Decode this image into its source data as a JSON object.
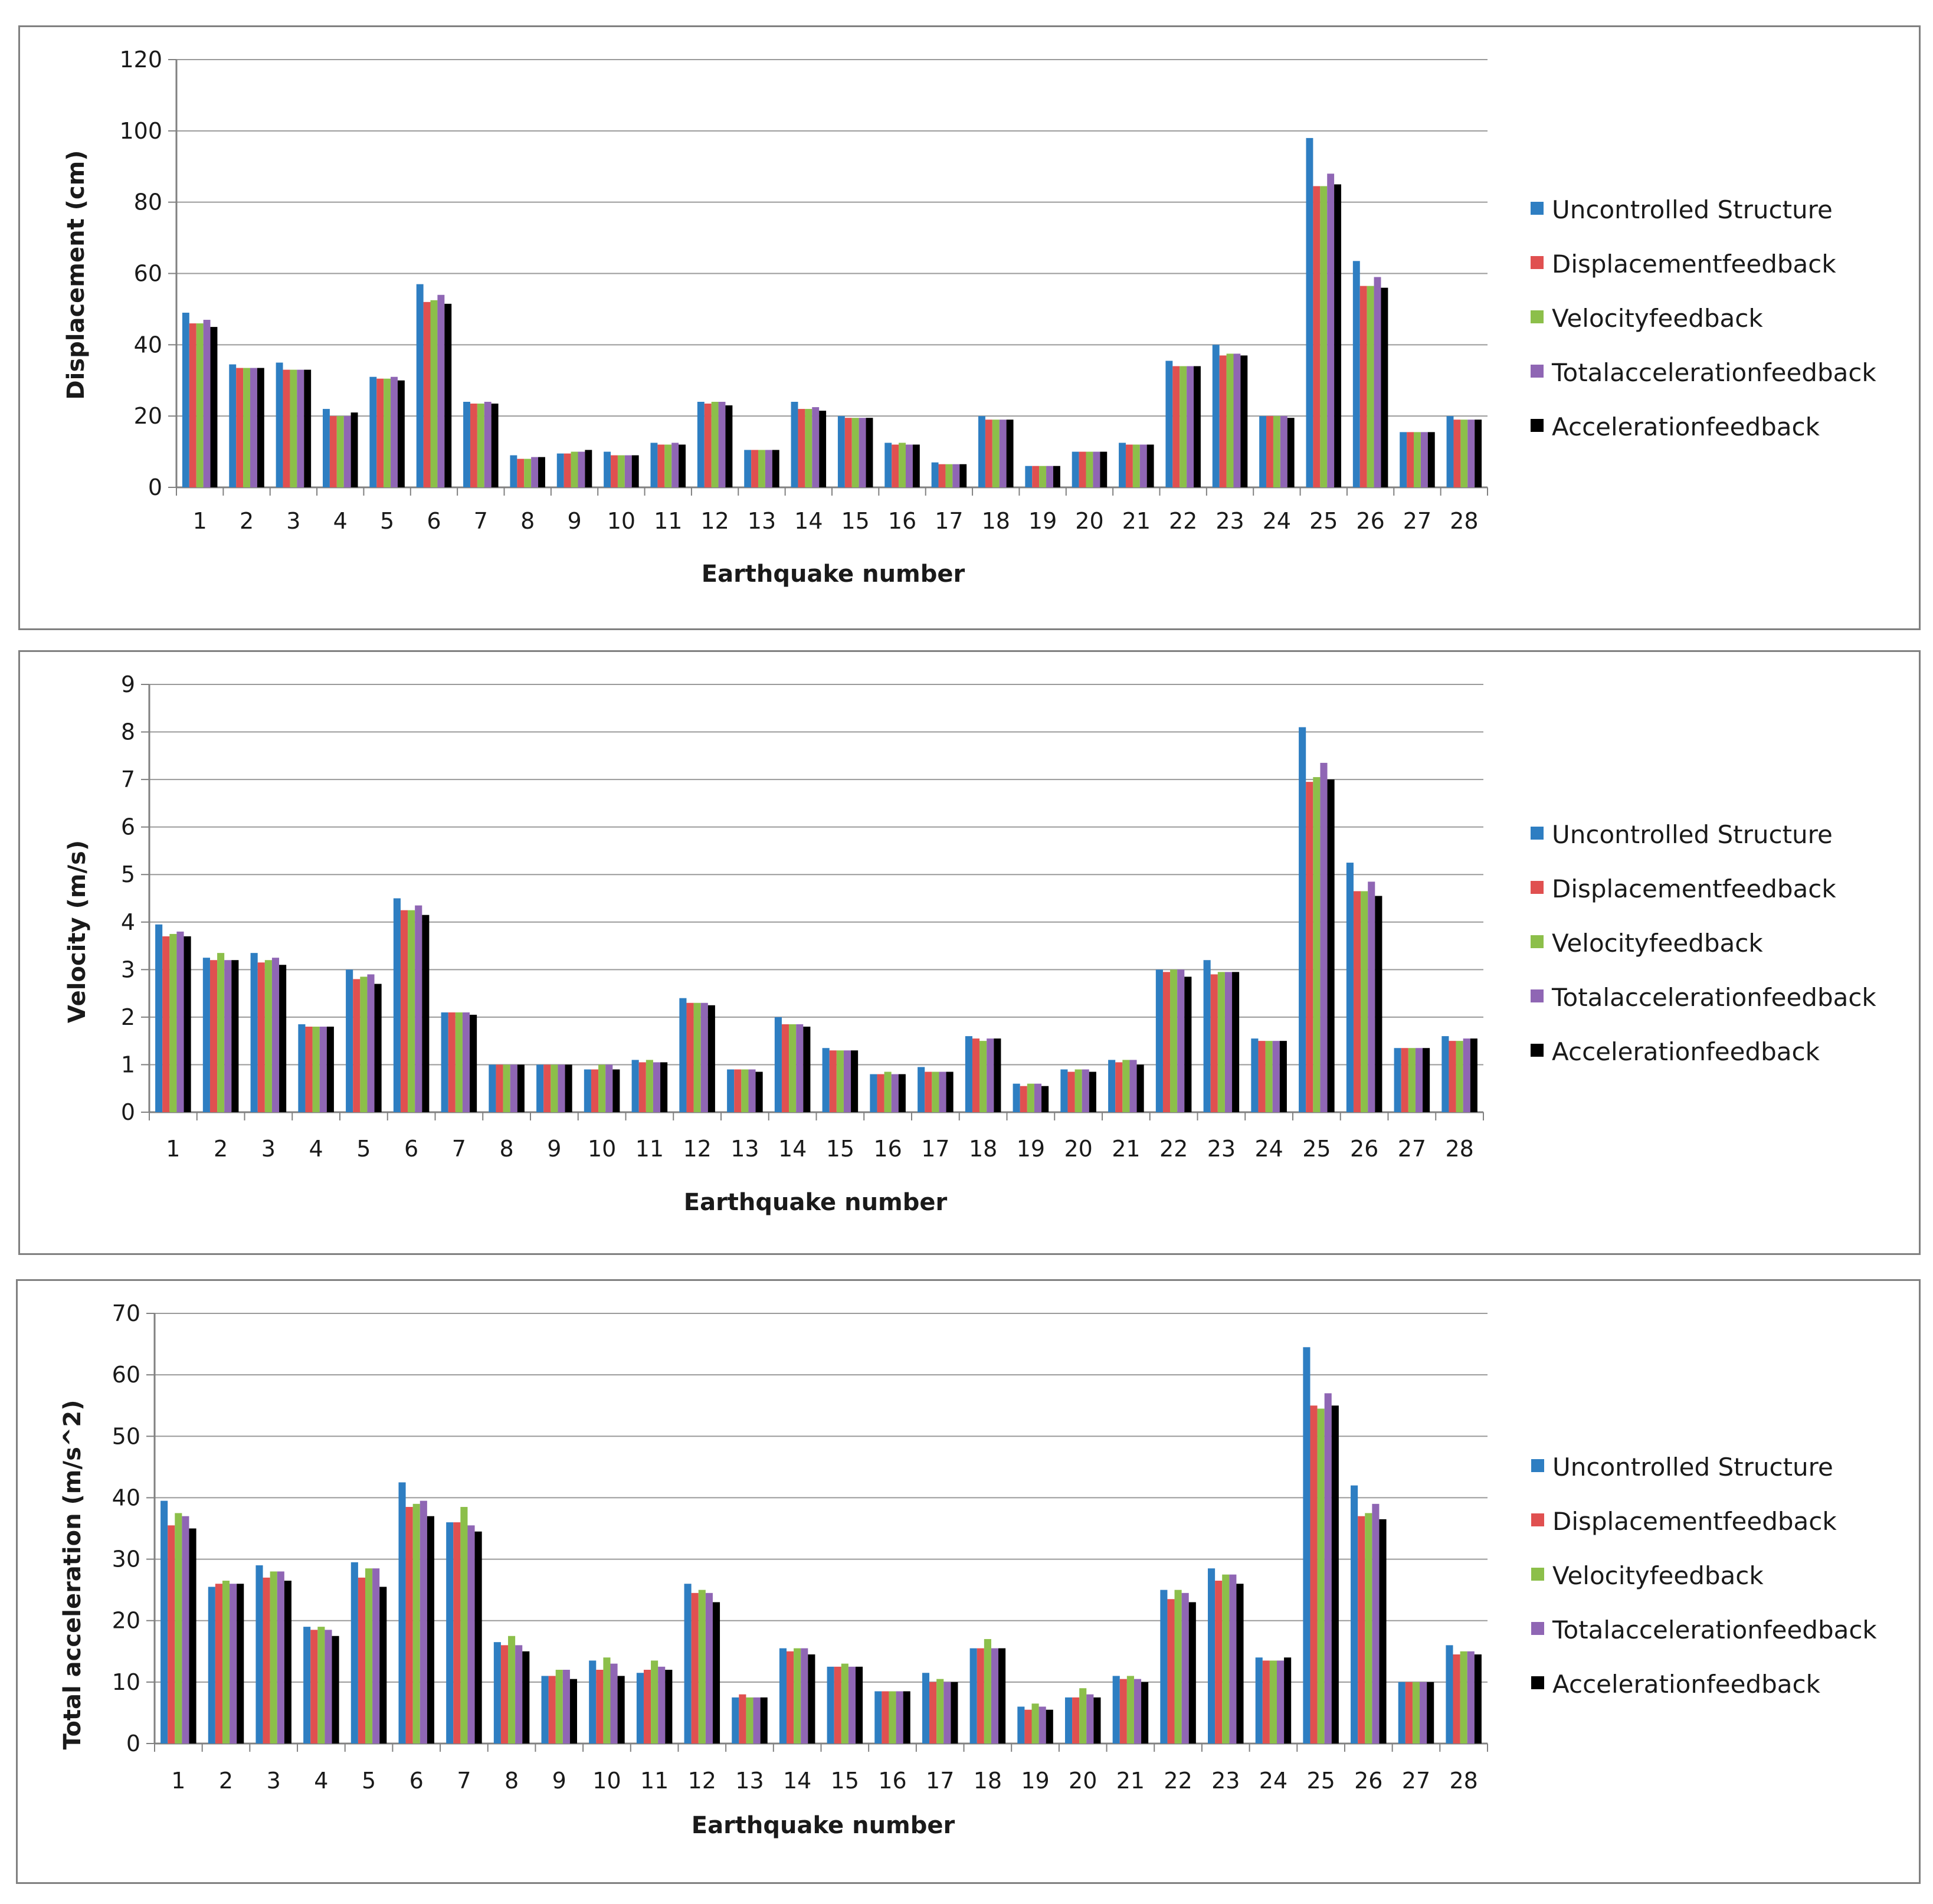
{
  "legend": [
    "Uncontrolled Structure",
    "Displacementfeedback",
    "Velocityfeedback",
    "Totalaccelerationfeedback",
    "Accelerationfeedback"
  ],
  "series_colors": [
    "#2e7ec2",
    "#e05050",
    "#8cbf4a",
    "#8f66b4",
    "#000000"
  ],
  "chart_data": [
    {
      "type": "bar",
      "title": "",
      "xlabel": "Earthquake number",
      "ylabel": "Displacement  (cm)",
      "ylim": [
        0,
        120
      ],
      "yticks": [
        0,
        20,
        40,
        60,
        80,
        100,
        120
      ],
      "categories": [
        "1",
        "2",
        "3",
        "4",
        "5",
        "6",
        "7",
        "8",
        "9",
        "10",
        "11",
        "12",
        "13",
        "14",
        "15",
        "16",
        "17",
        "18",
        "19",
        "20",
        "21",
        "22",
        "23",
        "24",
        "25",
        "26",
        "27",
        "28"
      ],
      "series": [
        {
          "name": "Uncontrolled Structure",
          "values": [
            49,
            34.5,
            35,
            22,
            31,
            57,
            24,
            9,
            9.5,
            10,
            12.5,
            24,
            10.5,
            24,
            20,
            12.5,
            7,
            20,
            6,
            10,
            12.5,
            35.5,
            40,
            20,
            98,
            63.5,
            15.5,
            20
          ]
        },
        {
          "name": "Displacementfeedback",
          "values": [
            46,
            33.5,
            33,
            20,
            30.5,
            52,
            23.5,
            8,
            9.5,
            9,
            12,
            23.5,
            10.5,
            22,
            19.5,
            12,
            6.5,
            19,
            6,
            10,
            12,
            34,
            37,
            20,
            84.5,
            56.5,
            15.5,
            19
          ]
        },
        {
          "name": "Velocityfeedback",
          "values": [
            46,
            33.5,
            33,
            20,
            30.5,
            52.5,
            23.5,
            8,
            10,
            9,
            12,
            24,
            10.5,
            22,
            19.5,
            12.5,
            6.5,
            19,
            6,
            10,
            12,
            34,
            37.5,
            20,
            84.5,
            56.5,
            15.5,
            19
          ]
        },
        {
          "name": "Totalaccelerationfeedback",
          "values": [
            47,
            33.5,
            33,
            20,
            31,
            54,
            24,
            8.5,
            10,
            9,
            12.5,
            24,
            10.5,
            22.5,
            19.5,
            12,
            6.5,
            19,
            6,
            10,
            12,
            34,
            37.5,
            20,
            88,
            59,
            15.5,
            19
          ]
        },
        {
          "name": "Accelerationfeedback",
          "values": [
            45,
            33.5,
            33,
            21,
            30,
            51.5,
            23.5,
            8.5,
            10.5,
            9,
            12,
            23,
            10.5,
            21.5,
            19.5,
            12,
            6.5,
            19,
            6,
            10,
            12,
            34,
            37,
            19.5,
            85,
            56,
            15.5,
            19
          ]
        }
      ]
    },
    {
      "type": "bar",
      "title": "",
      "xlabel": "Earthquake number",
      "ylabel": "Velocity (m/s)",
      "ylim": [
        0,
        9
      ],
      "yticks": [
        0,
        1,
        2,
        3,
        4,
        5,
        6,
        7,
        8,
        9
      ],
      "categories": [
        "1",
        "2",
        "3",
        "4",
        "5",
        "6",
        "7",
        "8",
        "9",
        "10",
        "11",
        "12",
        "13",
        "14",
        "15",
        "16",
        "17",
        "18",
        "19",
        "20",
        "21",
        "22",
        "23",
        "24",
        "25",
        "26",
        "27",
        "28"
      ],
      "series": [
        {
          "name": "Uncontrolled Structure",
          "values": [
            3.95,
            3.25,
            3.35,
            1.85,
            3.0,
            4.5,
            2.1,
            1.0,
            1.0,
            0.9,
            1.1,
            2.4,
            0.9,
            2.0,
            1.35,
            0.8,
            0.95,
            1.6,
            0.6,
            0.9,
            1.1,
            3.0,
            3.2,
            1.55,
            8.1,
            5.25,
            1.35,
            1.6
          ]
        },
        {
          "name": "Displacementfeedback",
          "values": [
            3.7,
            3.2,
            3.15,
            1.8,
            2.8,
            4.25,
            2.1,
            1.0,
            1.0,
            0.9,
            1.05,
            2.3,
            0.9,
            1.85,
            1.3,
            0.8,
            0.85,
            1.55,
            0.55,
            0.85,
            1.05,
            2.95,
            2.9,
            1.5,
            6.95,
            4.65,
            1.35,
            1.5
          ]
        },
        {
          "name": "Velocityfeedback",
          "values": [
            3.75,
            3.35,
            3.2,
            1.8,
            2.85,
            4.25,
            2.1,
            1.0,
            1.0,
            1.0,
            1.1,
            2.3,
            0.9,
            1.85,
            1.3,
            0.85,
            0.85,
            1.5,
            0.6,
            0.9,
            1.1,
            3.0,
            2.95,
            1.5,
            7.05,
            4.65,
            1.35,
            1.5
          ]
        },
        {
          "name": "Totalaccelerationfeedback",
          "values": [
            3.8,
            3.2,
            3.25,
            1.8,
            2.9,
            4.35,
            2.1,
            1.0,
            1.0,
            1.0,
            1.05,
            2.3,
            0.9,
            1.85,
            1.3,
            0.8,
            0.85,
            1.55,
            0.6,
            0.9,
            1.1,
            3.0,
            2.95,
            1.5,
            7.35,
            4.85,
            1.35,
            1.55
          ]
        },
        {
          "name": "Accelerationfeedback",
          "values": [
            3.7,
            3.2,
            3.1,
            1.8,
            2.7,
            4.15,
            2.05,
            1.0,
            1.0,
            0.9,
            1.05,
            2.25,
            0.85,
            1.8,
            1.3,
            0.8,
            0.85,
            1.55,
            0.55,
            0.85,
            1.0,
            2.85,
            2.95,
            1.5,
            7.0,
            4.55,
            1.35,
            1.55
          ]
        }
      ]
    },
    {
      "type": "bar",
      "title": "",
      "xlabel": "Earthquake number",
      "ylabel": "Total acceleration  (m/s^2)",
      "ylim": [
        0,
        70
      ],
      "yticks": [
        0,
        10,
        20,
        30,
        40,
        50,
        60,
        70
      ],
      "categories": [
        "1",
        "2",
        "3",
        "4",
        "5",
        "6",
        "7",
        "8",
        "9",
        "10",
        "11",
        "12",
        "13",
        "14",
        "15",
        "16",
        "17",
        "18",
        "19",
        "20",
        "21",
        "22",
        "23",
        "24",
        "25",
        "26",
        "27",
        "28"
      ],
      "series": [
        {
          "name": "Uncontrolled Structure",
          "values": [
            39.5,
            25.5,
            29,
            19,
            29.5,
            42.5,
            36,
            16.5,
            11,
            13.5,
            11.5,
            26,
            7.5,
            15.5,
            12.5,
            8.5,
            11.5,
            15.5,
            6,
            7.5,
            11,
            25,
            28.5,
            14,
            64.5,
            42,
            10,
            16
          ]
        },
        {
          "name": "Displacementfeedback",
          "values": [
            35.5,
            26,
            27,
            18.5,
            27,
            38.5,
            36,
            16,
            11,
            12,
            12,
            24.5,
            8,
            15,
            12.5,
            8.5,
            10,
            15.5,
            5.5,
            7.5,
            10.5,
            23.5,
            26.5,
            13.5,
            55,
            37,
            10,
            14.5
          ]
        },
        {
          "name": "Velocityfeedback",
          "values": [
            37.5,
            26.5,
            28,
            19,
            28.5,
            39,
            38.5,
            17.5,
            12,
            14,
            13.5,
            25,
            7.5,
            15.5,
            13,
            8.5,
            10.5,
            17,
            6.5,
            9,
            11,
            25,
            27.5,
            13.5,
            54.5,
            37.5,
            10,
            15
          ]
        },
        {
          "name": "Totalaccelerationfeedback",
          "values": [
            37,
            26,
            28,
            18.5,
            28.5,
            39.5,
            35.5,
            16,
            12,
            13,
            12.5,
            24.5,
            7.5,
            15.5,
            12.5,
            8.5,
            10,
            15.5,
            6,
            8,
            10.5,
            24.5,
            27.5,
            13.5,
            57,
            39,
            10,
            15
          ]
        },
        {
          "name": "Accelerationfeedback",
          "values": [
            35,
            26,
            26.5,
            17.5,
            25.5,
            37,
            34.5,
            15,
            10.5,
            11,
            12,
            23,
            7.5,
            14.5,
            12.5,
            8.5,
            10,
            15.5,
            5.5,
            7.5,
            10,
            23,
            26,
            14,
            55,
            36.5,
            10,
            14.5
          ]
        }
      ]
    }
  ]
}
